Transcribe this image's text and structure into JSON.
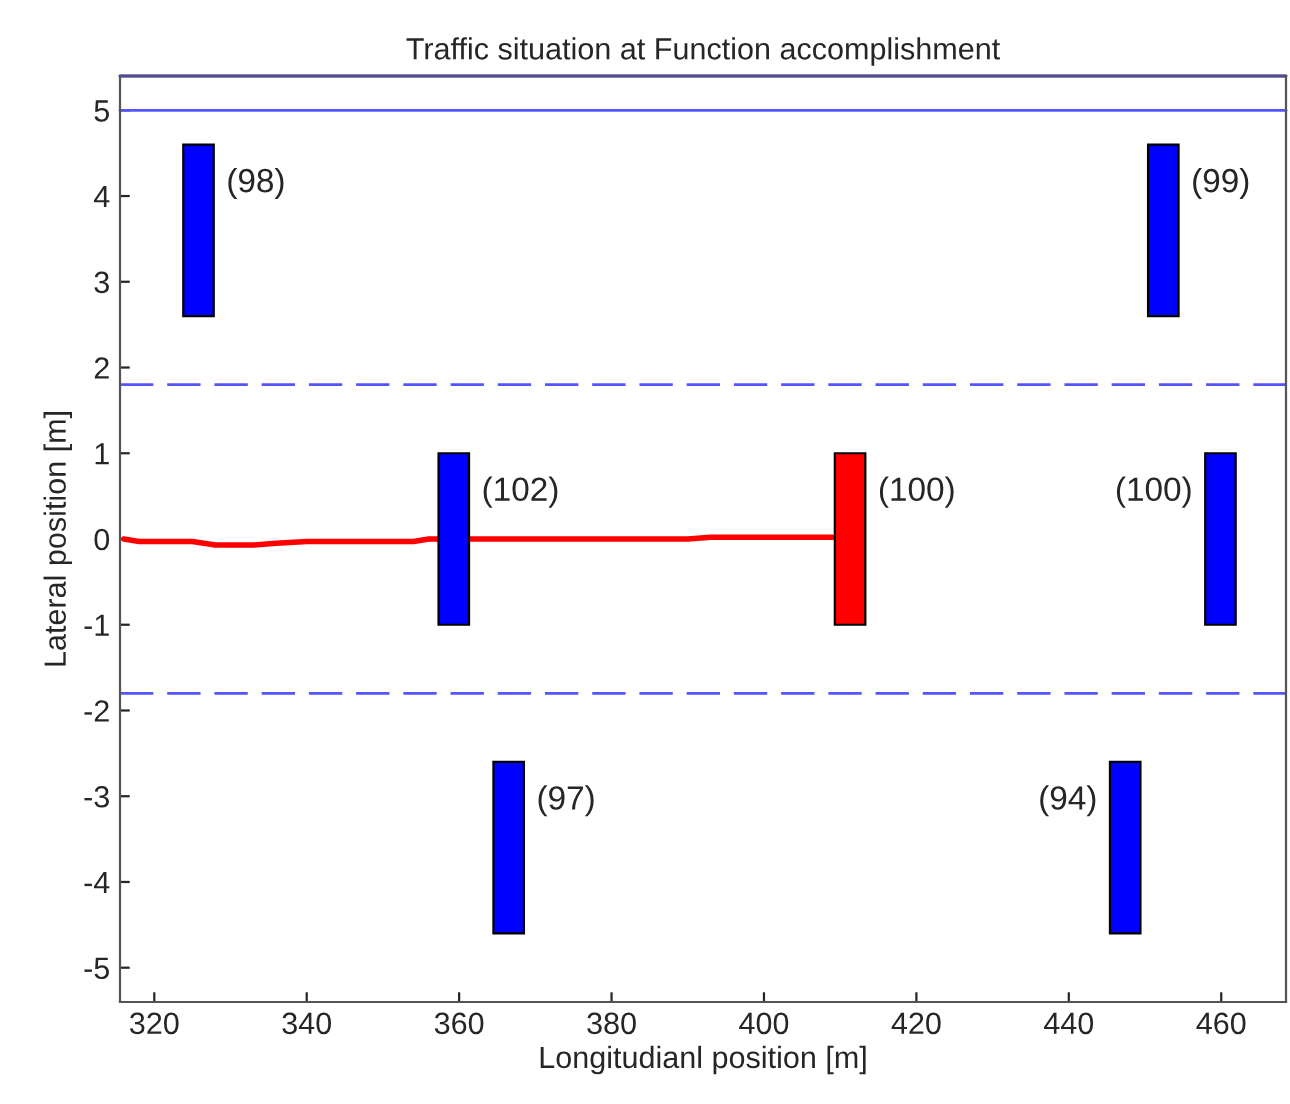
{
  "chart_data": {
    "type": "bar",
    "title": "Traffic situation at Function accomplishment",
    "xlabel": "Longitudianl position [m]",
    "ylabel": "Lateral position [m]",
    "series": [
      {
        "color": "#0000ff",
        "x": [
          325.8,
          359.3,
          366.5,
          447.4,
          452.4,
          459.9
        ],
        "base": [
          2.6,
          -1,
          -4.6,
          -4.6,
          2.6,
          -1
        ],
        "values": [
          2,
          2,
          2,
          2,
          2,
          2
        ]
      },
      {
        "color": "#ff0000",
        "x": [
          411.3
        ],
        "base": [
          -1
        ],
        "values": [
          2
        ]
      },
      {
        "type": "line",
        "color": "#ff0000",
        "x": [
          316,
          318,
          322,
          325,
          328,
          333,
          336,
          340,
          345,
          350,
          354,
          356,
          362,
          370,
          380,
          390,
          393,
          396,
          400,
          405,
          409
        ],
        "values": [
          0,
          -0.03,
          -0.03,
          -0.03,
          -0.07,
          -0.07,
          -0.05,
          -0.03,
          -0.03,
          -0.03,
          -0.03,
          0,
          0,
          0,
          0,
          0,
          0.02,
          0.02,
          0.02,
          0.02,
          0.02
        ]
      }
    ],
    "annotations": [
      {
        "text": "(98)",
        "x": 325.8,
        "y": 4.6
      },
      {
        "text": "(99)",
        "x": 452.4,
        "y": 4.6
      },
      {
        "text": "(102)",
        "x": 359.3,
        "y": 1
      },
      {
        "text": "(100)",
        "x": 411.3,
        "y": 1
      },
      {
        "text": "(100)",
        "x": 459.9,
        "y": 1
      },
      {
        "text": "(97)",
        "x": 366.5,
        "y": -2.6
      },
      {
        "text": "(94)",
        "x": 447.4,
        "y": -2.6
      }
    ],
    "ref_lines": [
      {
        "axis": "y",
        "value": 5.4,
        "color": "#0000cc",
        "line_style": "solid"
      },
      {
        "axis": "y",
        "value": 5,
        "color": "#5555ff",
        "line_style": "solid"
      },
      {
        "axis": "y",
        "value": 1.8,
        "color": "#5555ff",
        "line_style": "dashed"
      },
      {
        "axis": "y",
        "value": -1.8,
        "color": "#5555ff",
        "line_style": "dashed"
      }
    ],
    "xlim": [
      315.5,
      468.5
    ],
    "xticks": [
      320,
      340,
      360,
      380,
      400,
      420,
      440,
      460
    ],
    "ylim": [
      -5.4,
      5.4
    ],
    "yticks": [
      -5,
      -4,
      -3,
      -2,
      -1,
      0,
      1,
      2,
      3,
      4,
      5
    ],
    "grid": false,
    "legend": false
  }
}
